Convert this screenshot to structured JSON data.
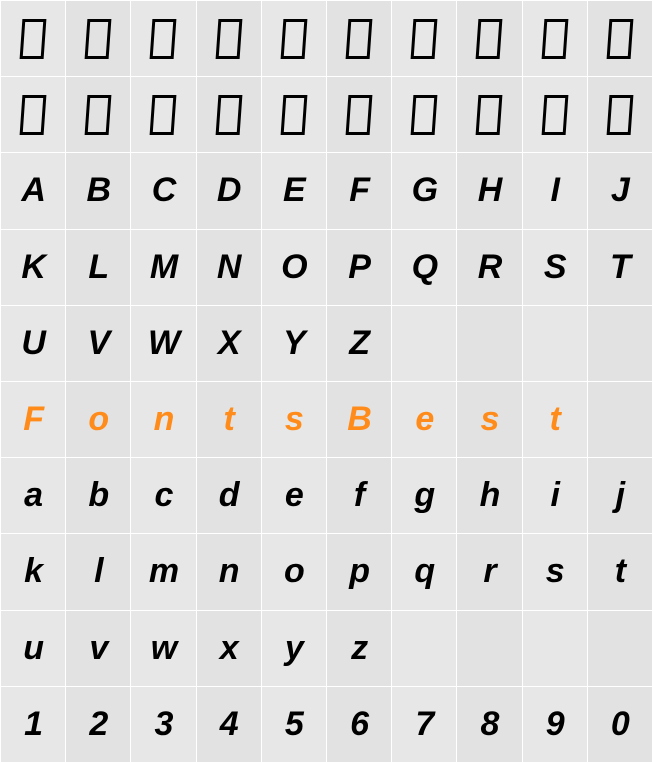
{
  "grid": {
    "cols": 10,
    "rows": 10,
    "colors": {
      "bg_a": "#e7e7e7",
      "bg_b": "#e2e2e2",
      "text_default": "#000000",
      "text_accent": "#ff8c1a",
      "grid_line": "#ffffff"
    },
    "font": {
      "style": "italic",
      "weight": "bold",
      "size_pt": 26
    },
    "rows_data": [
      {
        "type": "tofu",
        "cells": [
          "□",
          "□",
          "□",
          "□",
          "□",
          "□",
          "□",
          "□",
          "□",
          "□"
        ],
        "color": "black"
      },
      {
        "type": "tofu",
        "cells": [
          "□",
          "□",
          "□",
          "□",
          "□",
          "□",
          "□",
          "□",
          "□",
          "□"
        ],
        "color": "black"
      },
      {
        "type": "glyph",
        "cells": [
          "A",
          "B",
          "C",
          "D",
          "E",
          "F",
          "G",
          "H",
          "I",
          "J"
        ],
        "color": "black"
      },
      {
        "type": "glyph",
        "cells": [
          "K",
          "L",
          "M",
          "N",
          "O",
          "P",
          "Q",
          "R",
          "S",
          "T"
        ],
        "color": "black"
      },
      {
        "type": "glyph",
        "cells": [
          "U",
          "V",
          "W",
          "X",
          "Y",
          "Z",
          "",
          "",
          "",
          ""
        ],
        "color": "black"
      },
      {
        "type": "glyph",
        "cells": [
          "F",
          "o",
          "n",
          "t",
          "s",
          "B",
          "e",
          "s",
          "t",
          ""
        ],
        "color": "orange"
      },
      {
        "type": "glyph",
        "cells": [
          "a",
          "b",
          "c",
          "d",
          "e",
          "f",
          "g",
          "h",
          "i",
          "j"
        ],
        "color": "black"
      },
      {
        "type": "glyph",
        "cells": [
          "k",
          "l",
          "m",
          "n",
          "o",
          "p",
          "q",
          "r",
          "s",
          "t"
        ],
        "color": "black"
      },
      {
        "type": "glyph",
        "cells": [
          "u",
          "v",
          "w",
          "x",
          "y",
          "z",
          "",
          "",
          "",
          ""
        ],
        "color": "black"
      },
      {
        "type": "glyph",
        "cells": [
          "1",
          "2",
          "3",
          "4",
          "5",
          "6",
          "7",
          "8",
          "9",
          "0"
        ],
        "color": "black"
      }
    ]
  }
}
